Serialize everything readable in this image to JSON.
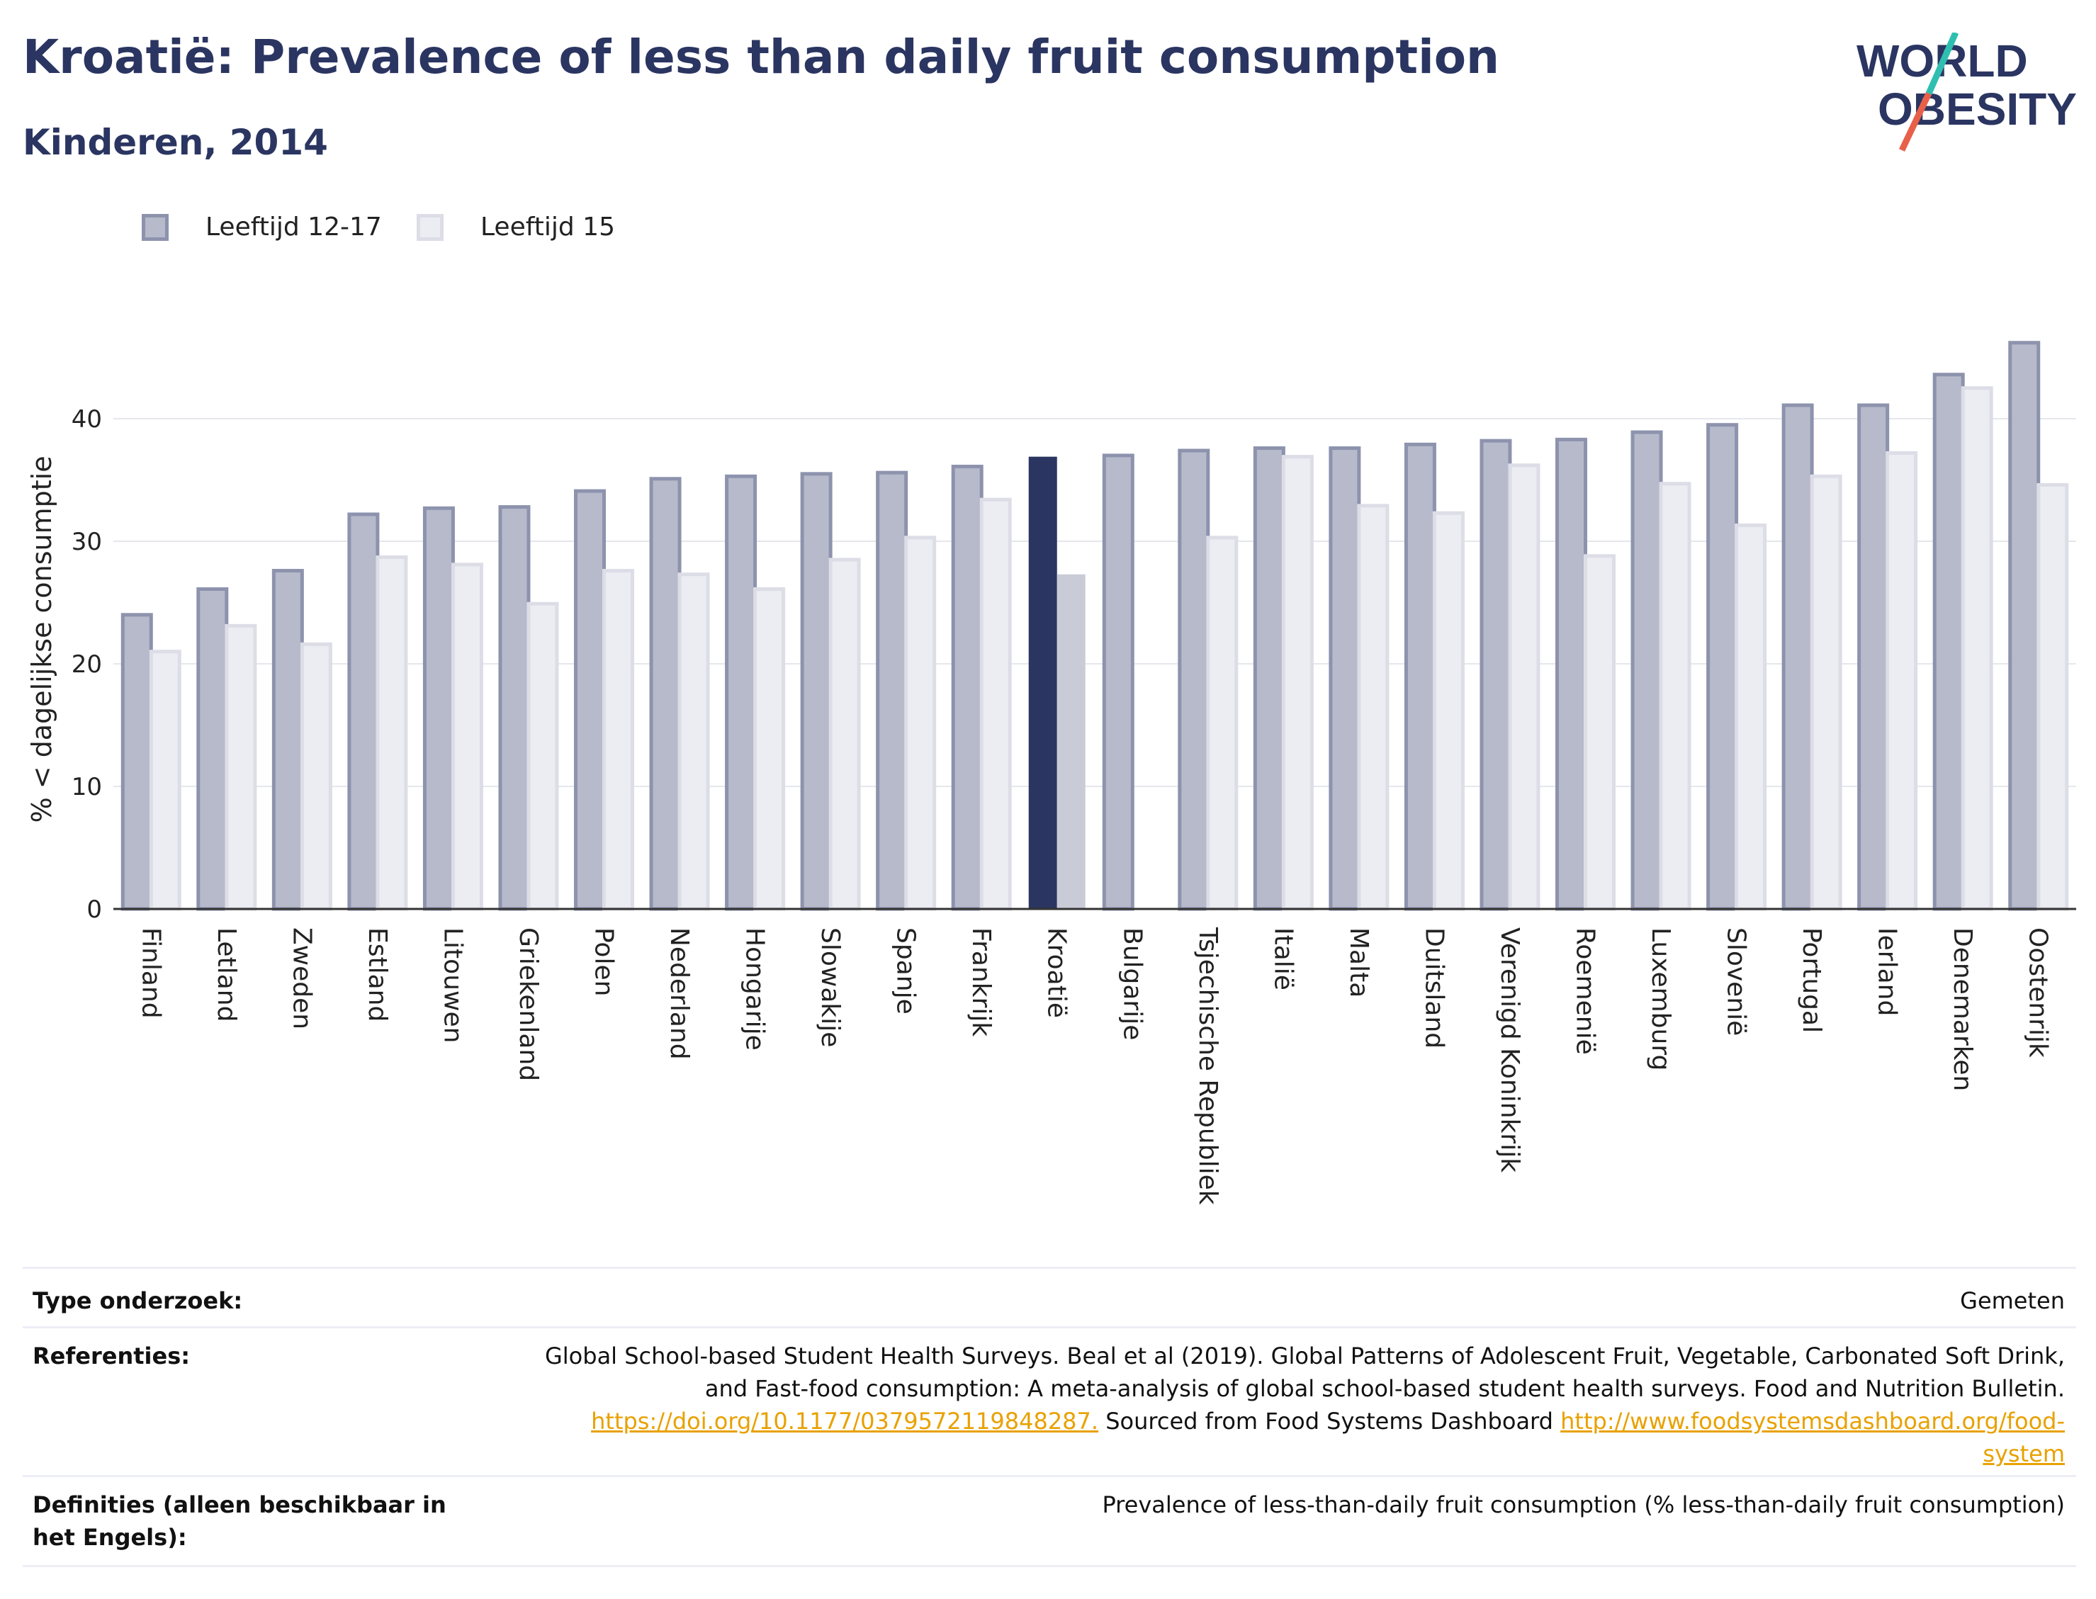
{
  "header": {
    "title": "Kroatië: Prevalence of less than daily fruit consumption",
    "subtitle": "Kinderen, 2014"
  },
  "logo": {
    "line1": "WORLD",
    "line2": "OBESITY",
    "colors": {
      "text": "#2b3561",
      "slash_top": "#2fbfb0",
      "slash_bottom": "#e8604a"
    }
  },
  "legend": {
    "items": [
      {
        "label": "Leeftijd 12-17",
        "color": "#b6bacb"
      },
      {
        "label": "Leeftijd 15",
        "color": "#ecedf2"
      }
    ]
  },
  "colors": {
    "series1_fill": "#b6bacb",
    "series1_stroke": "#8d93ad",
    "series2_fill": "#ecedf2",
    "series2_stroke": "#dcdde6",
    "highlight1": "#2b3561",
    "highlight2": "#c9cbd7",
    "grid": "#e6e7ee",
    "axis": "#333333"
  },
  "chart_data": {
    "type": "bar",
    "ylabel": "% < dagelijkse consumptie",
    "ylim": [
      0,
      48
    ],
    "yticks": [
      0,
      10,
      20,
      30,
      40
    ],
    "grid": true,
    "legend_position": "top-left",
    "highlight_category": "Kroatië",
    "categories": [
      "Finland",
      "Letland",
      "Zweden",
      "Estland",
      "Litouwen",
      "Griekenland",
      "Polen",
      "Nederland",
      "Hongarije",
      "Slowakije",
      "Spanje",
      "Frankrijk",
      "Kroatië",
      "Bulgarije",
      "Tsjechische Republiek",
      "Italië",
      "Malta",
      "Duitsland",
      "Verenigd Koninkrijk",
      "Roemenië",
      "Luxemburg",
      "Slovenië",
      "Portugal",
      "Ierland",
      "Denemarken",
      "Oostenrijk"
    ],
    "series": [
      {
        "name": "Leeftijd 12-17",
        "values": [
          24.0,
          26.1,
          27.6,
          32.2,
          32.7,
          32.8,
          34.1,
          35.1,
          35.3,
          35.5,
          35.6,
          36.1,
          36.9,
          37.0,
          37.4,
          37.6,
          37.6,
          37.9,
          38.2,
          38.3,
          38.9,
          39.5,
          41.1,
          41.1,
          43.6,
          46.2
        ]
      },
      {
        "name": "Leeftijd 15",
        "values": [
          21.0,
          23.1,
          21.6,
          28.7,
          28.1,
          24.9,
          27.6,
          27.3,
          26.1,
          28.5,
          30.3,
          33.4,
          27.3,
          null,
          30.3,
          36.9,
          32.9,
          32.3,
          36.2,
          28.8,
          34.7,
          31.3,
          35.3,
          37.2,
          42.5,
          34.6
        ]
      }
    ]
  },
  "meta": {
    "type_key": "Type onderzoek:",
    "type_val": "Gemeten",
    "ref_key": "Referenties:",
    "ref_line1": "Global School-based Student Health Surveys. Beal et al (2019). Global Patterns of Adolescent Fruit, Vegetable, Carbonated Soft Drink,",
    "ref_line2": "and Fast-food consumption: A meta-analysis of global school-based student health surveys. Food and Nutrition Bulletin.",
    "ref_link1": "https://doi.org/10.1177/0379572119848287.",
    "ref_mid": " Sourced from Food Systems Dashboard ",
    "ref_link2a": "http://www.foodsystemsdashboard.org/food-",
    "ref_link2b": "system",
    "def_key": "Definities (alleen beschikbaar in het Engels):",
    "def_val": "Prevalence of less-than-daily fruit consumption (% less-than-daily fruit consumption)"
  }
}
